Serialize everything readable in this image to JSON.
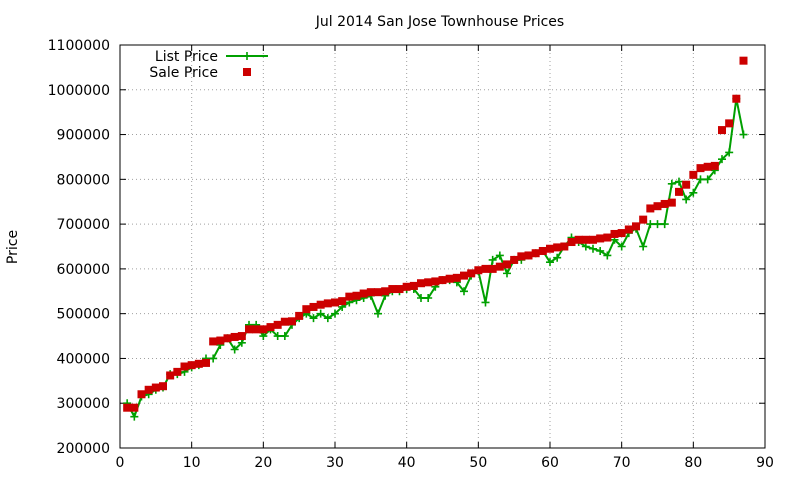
{
  "chart_data": {
    "type": "line",
    "title": "Jul 2014 San Jose Townhouse Prices",
    "xlabel": "",
    "ylabel": "Price",
    "xlim": [
      0,
      90
    ],
    "ylim": [
      200000,
      1100000
    ],
    "xticks": [
      0,
      10,
      20,
      30,
      40,
      50,
      60,
      70,
      80,
      90
    ],
    "yticks": [
      200000,
      300000,
      400000,
      500000,
      600000,
      700000,
      800000,
      900000,
      1000000,
      1100000
    ],
    "grid": true,
    "legend_position": "top-left",
    "colors": {
      "list_price": "#00a000",
      "sale_price": "#cc0000",
      "grid": "#a0a0a0"
    },
    "x": [
      1,
      2,
      3,
      4,
      5,
      6,
      7,
      8,
      9,
      10,
      11,
      12,
      13,
      14,
      15,
      16,
      17,
      18,
      19,
      20,
      21,
      22,
      23,
      24,
      25,
      26,
      27,
      28,
      29,
      30,
      31,
      32,
      33,
      34,
      35,
      36,
      37,
      38,
      39,
      40,
      41,
      42,
      43,
      44,
      45,
      46,
      47,
      48,
      49,
      50,
      51,
      52,
      53,
      54,
      55,
      56,
      57,
      58,
      59,
      60,
      61,
      62,
      63,
      64,
      65,
      66,
      67,
      68,
      69,
      70,
      71,
      72,
      73,
      74,
      75,
      76,
      77,
      78,
      79,
      80,
      81,
      82,
      83,
      84,
      85,
      86,
      87
    ],
    "series": [
      {
        "name": "List Price",
        "style": "linespoints",
        "values": [
          300000,
          270000,
          315000,
          320000,
          330000,
          335000,
          365000,
          365000,
          370000,
          380000,
          385000,
          400000,
          400000,
          430000,
          445000,
          420000,
          435000,
          475000,
          475000,
          450000,
          465000,
          450000,
          450000,
          475000,
          490000,
          500000,
          490000,
          500000,
          490000,
          500000,
          515000,
          525000,
          530000,
          535000,
          540000,
          500000,
          540000,
          550000,
          550000,
          555000,
          555000,
          535000,
          535000,
          560000,
          575000,
          575000,
          570000,
          550000,
          585000,
          595000,
          525000,
          620000,
          630000,
          590000,
          620000,
          620000,
          630000,
          635000,
          640000,
          615000,
          625000,
          650000,
          670000,
          660000,
          650000,
          645000,
          640000,
          630000,
          665000,
          650000,
          680000,
          690000,
          650000,
          700000,
          700000,
          700000,
          790000,
          795000,
          755000,
          770000,
          800000,
          800000,
          820000,
          845000,
          860000,
          980000,
          900000
        ]
      },
      {
        "name": "Sale Price",
        "style": "points",
        "values": [
          290000,
          290000,
          320000,
          330000,
          335000,
          338000,
          362000,
          370000,
          382000,
          385000,
          388000,
          390000,
          438000,
          440000,
          445000,
          448000,
          450000,
          465000,
          465000,
          465000,
          470000,
          475000,
          482000,
          483000,
          495000,
          510000,
          515000,
          520000,
          523000,
          525000,
          528000,
          538000,
          540000,
          545000,
          548000,
          548000,
          550000,
          555000,
          555000,
          560000,
          562000,
          568000,
          570000,
          572000,
          575000,
          578000,
          580000,
          585000,
          590000,
          597000,
          600000,
          600000,
          605000,
          610000,
          620000,
          628000,
          630000,
          635000,
          640000,
          645000,
          648000,
          650000,
          660000,
          665000,
          665000,
          665000,
          668000,
          670000,
          678000,
          680000,
          688000,
          695000,
          710000,
          735000,
          740000,
          745000,
          748000,
          772000,
          788000,
          810000,
          825000,
          828000,
          830000,
          910000,
          925000,
          980000,
          1065000
        ]
      }
    ]
  }
}
